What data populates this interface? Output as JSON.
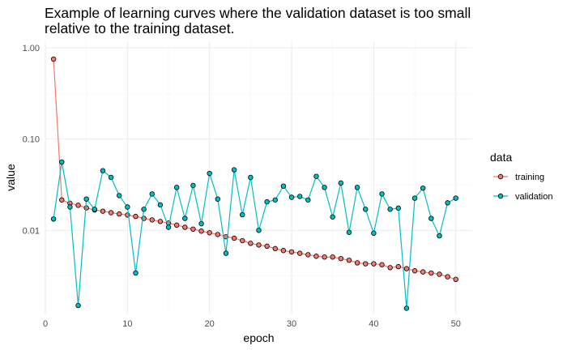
{
  "chart_data": {
    "type": "line",
    "title_lines": [
      "Example of learning curves where the validation dataset is too small",
      "relative to the training dataset."
    ],
    "xlabel": "epoch",
    "ylabel": "value",
    "x_scale": "linear",
    "y_scale": "log10",
    "xlim": [
      0,
      52
    ],
    "ylim": [
      0.0012,
      1.2
    ],
    "x_ticks": [
      0,
      10,
      20,
      30,
      40,
      50
    ],
    "x_tick_labels": [
      "0",
      "10",
      "20",
      "30",
      "40",
      "50"
    ],
    "y_ticks": [
      0.01,
      0.1,
      1.0
    ],
    "y_tick_labels": [
      "0.01",
      "0.10",
      "1.00"
    ],
    "legend": {
      "title": "data",
      "position": "right"
    },
    "x": [
      1,
      2,
      3,
      4,
      5,
      6,
      7,
      8,
      9,
      10,
      11,
      12,
      13,
      14,
      15,
      16,
      17,
      18,
      19,
      20,
      21,
      22,
      23,
      24,
      25,
      26,
      27,
      28,
      29,
      30,
      31,
      32,
      33,
      34,
      35,
      36,
      37,
      38,
      39,
      40,
      41,
      42,
      43,
      44,
      45,
      46,
      47,
      48,
      49,
      50
    ],
    "series": [
      {
        "name": "training",
        "color": "#F8766D",
        "values": [
          0.75,
          0.0215,
          0.0198,
          0.0188,
          0.0176,
          0.0167,
          0.0162,
          0.0156,
          0.0151,
          0.0147,
          0.0142,
          0.0135,
          0.013,
          0.0125,
          0.012,
          0.0114,
          0.0108,
          0.0103,
          0.0098,
          0.0094,
          0.009,
          0.0085,
          0.0082,
          0.0077,
          0.0072,
          0.0069,
          0.0067,
          0.0063,
          0.006,
          0.0058,
          0.0056,
          0.0054,
          0.0052,
          0.0051,
          0.0051,
          0.0049,
          0.0047,
          0.0044,
          0.0043,
          0.0043,
          0.0042,
          0.0039,
          0.004,
          0.0038,
          0.0036,
          0.0035,
          0.0034,
          0.0033,
          0.0031,
          0.0029
        ]
      },
      {
        "name": "validation",
        "color": "#00BFC4",
        "values": [
          0.0133,
          0.056,
          0.018,
          0.0015,
          0.022,
          0.017,
          0.045,
          0.038,
          0.024,
          0.018,
          0.0034,
          0.017,
          0.025,
          0.019,
          0.0108,
          0.0295,
          0.0135,
          0.031,
          0.0118,
          0.042,
          0.022,
          0.0056,
          0.046,
          0.0148,
          0.038,
          0.01,
          0.0205,
          0.0215,
          0.0305,
          0.023,
          0.0235,
          0.0215,
          0.039,
          0.0295,
          0.014,
          0.033,
          0.0095,
          0.0295,
          0.017,
          0.0093,
          0.025,
          0.017,
          0.0175,
          0.0014,
          0.0225,
          0.029,
          0.0135,
          0.0087,
          0.02,
          0.0225
        ]
      }
    ]
  }
}
